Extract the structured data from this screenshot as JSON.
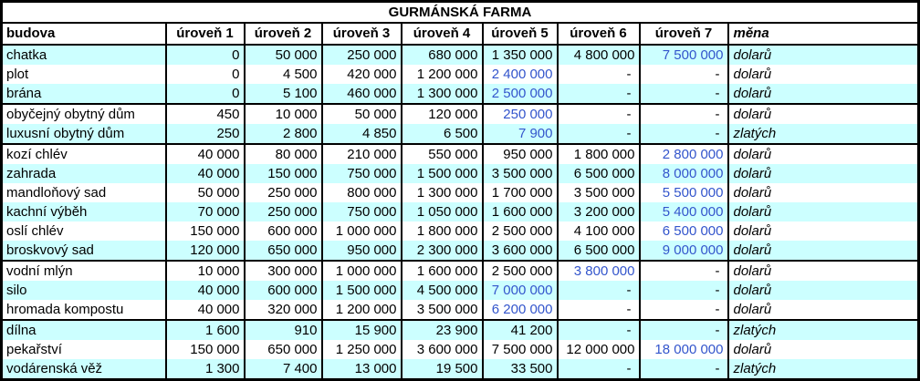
{
  "colors": {
    "stripe": "#CCFFFF",
    "max_level_text": "#3355CC",
    "border": "#000000",
    "background": "#FFFFFF"
  },
  "chart_data": {
    "type": "table",
    "title": "GURMÁNSKÁ FARMA",
    "columns": [
      "budova",
      "úroveň 1",
      "úroveň 2",
      "úroveň 3",
      "úroveň 4",
      "úroveň 5",
      "úroveň 6",
      "úroveň 7",
      "měna"
    ],
    "empty_cell": "-",
    "rows": [
      {
        "name": "chatka",
        "levels": [
          "0",
          "50 000",
          "250 000",
          "680 000",
          "1 350 000",
          "4 800 000",
          "7 500 000"
        ],
        "blue_index": 6,
        "currency": "dolarů",
        "group_start": false
      },
      {
        "name": "plot",
        "levels": [
          "0",
          "4 500",
          "420 000",
          "1 200 000",
          "2 400 000",
          "-",
          "-"
        ],
        "blue_index": 4,
        "currency": "dolarů",
        "group_start": false
      },
      {
        "name": "brána",
        "levels": [
          "0",
          "5 100",
          "460 000",
          "1 300 000",
          "2 500 000",
          "-",
          "-"
        ],
        "blue_index": 4,
        "currency": "dolarů",
        "group_start": false
      },
      {
        "name": "obyčejný obytný dům",
        "levels": [
          "450",
          "10 000",
          "50 000",
          "120 000",
          "250 000",
          "-",
          "-"
        ],
        "blue_index": 4,
        "currency": "dolarů",
        "group_start": true
      },
      {
        "name": "luxusní obytný dům",
        "levels": [
          "250",
          "2 800",
          "4 850",
          "6 500",
          "7 900",
          "-",
          "-"
        ],
        "blue_index": 4,
        "currency": "zlatých",
        "group_start": false
      },
      {
        "name": "kozí chlév",
        "levels": [
          "40 000",
          "80 000",
          "210 000",
          "550 000",
          "950 000",
          "1 800 000",
          "2 800 000"
        ],
        "blue_index": 6,
        "currency": "dolarů",
        "group_start": true
      },
      {
        "name": "zahrada",
        "levels": [
          "40 000",
          "150 000",
          "750 000",
          "1 500 000",
          "3 500 000",
          "6 500 000",
          "8 000 000"
        ],
        "blue_index": 6,
        "currency": "dolarů",
        "group_start": false
      },
      {
        "name": "mandloňový sad",
        "levels": [
          "50 000",
          "250 000",
          "800 000",
          "1 300 000",
          "1 700 000",
          "3 500 000",
          "5 500 000"
        ],
        "blue_index": 6,
        "currency": "dolarů",
        "group_start": false
      },
      {
        "name": "kachní výběh",
        "levels": [
          "70 000",
          "250 000",
          "750 000",
          "1 050 000",
          "1 600 000",
          "3 200 000",
          "5 400 000"
        ],
        "blue_index": 6,
        "currency": "dolarů",
        "group_start": false
      },
      {
        "name": "oslí chlév",
        "levels": [
          "150 000",
          "600 000",
          "1 000 000",
          "1 800 000",
          "2 500 000",
          "4 100 000",
          "6 500 000"
        ],
        "blue_index": 6,
        "currency": "dolarů",
        "group_start": false
      },
      {
        "name": "broskvový sad",
        "levels": [
          "120 000",
          "650 000",
          "950 000",
          "2 300 000",
          "3 600 000",
          "6 500 000",
          "9 000 000"
        ],
        "blue_index": 6,
        "currency": "dolarů",
        "group_start": false
      },
      {
        "name": "vodní mlýn",
        "levels": [
          "10 000",
          "300 000",
          "1 000 000",
          "1 600 000",
          "2 500 000",
          "3 800 000",
          "-"
        ],
        "blue_index": 5,
        "currency": "dolarů",
        "group_start": true
      },
      {
        "name": "silo",
        "levels": [
          "40 000",
          "600 000",
          "1 500 000",
          "4 500 000",
          "7 000 000",
          "-",
          "-"
        ],
        "blue_index": 4,
        "currency": "dolarů",
        "group_start": false
      },
      {
        "name": "hromada kompostu",
        "levels": [
          "40 000",
          "320 000",
          "1 200 000",
          "3 500 000",
          "6 200 000",
          "-",
          "-"
        ],
        "blue_index": 4,
        "currency": "dolarů",
        "group_start": false
      },
      {
        "name": "dílna",
        "levels": [
          "1 600",
          "910",
          "15 900",
          "23 900",
          "41 200",
          "-",
          "-"
        ],
        "blue_index": -1,
        "currency": "zlatých",
        "group_start": true
      },
      {
        "name": "pekařství",
        "levels": [
          "150 000",
          "650 000",
          "1 250 000",
          "3 600 000",
          "7 500 000",
          "12 000 000",
          "18 000 000"
        ],
        "blue_index": 6,
        "currency": "dolarů",
        "group_start": false
      },
      {
        "name": "vodárenská věž",
        "levels": [
          "1 300",
          "7 400",
          "13 000",
          "19 500",
          "33 500",
          "-",
          "-"
        ],
        "blue_index": -1,
        "currency": "zlatých",
        "group_start": false
      }
    ]
  }
}
